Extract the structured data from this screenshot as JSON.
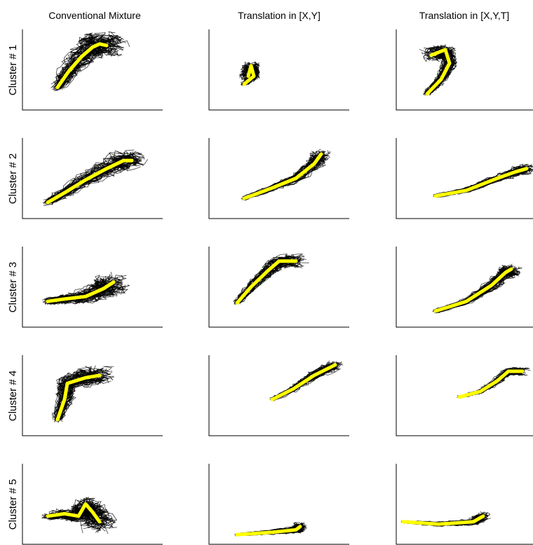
{
  "chart_data": {
    "type": "line",
    "column_titles": [
      "Conventional Mixture",
      "Translation in [X,Y]",
      "Translation in [X,Y,T]"
    ],
    "row_labels": [
      "Cluster # 1",
      "Cluster # 2",
      "Cluster # 3",
      "Cluster # 4",
      "Cluster # 5"
    ],
    "axes": "left and bottom spines only, no ticks",
    "grid": false,
    "series": [
      {
        "name": "trajectories",
        "color": "#000000"
      },
      {
        "name": "cluster mean",
        "color": "#ffff00"
      }
    ],
    "panels": [
      [
        {
          "mean": [
            [
              0.25,
              0.28
            ],
            [
              0.33,
              0.48
            ],
            [
              0.42,
              0.66
            ],
            [
              0.5,
              0.78
            ],
            [
              0.55,
              0.82
            ],
            [
              0.6,
              0.8
            ]
          ],
          "spread": 0.18
        },
        {
          "mean": [
            [
              0.18,
              0.2
            ],
            [
              0.3,
              0.32
            ],
            [
              0.45,
              0.48
            ],
            [
              0.6,
              0.62
            ],
            [
              0.72,
              0.72
            ],
            [
              0.78,
              0.72
            ]
          ],
          "spread": 0.14
        },
        {
          "mean": [
            [
              0.18,
              0.32
            ],
            [
              0.3,
              0.35
            ],
            [
              0.45,
              0.38
            ],
            [
              0.58,
              0.48
            ],
            [
              0.65,
              0.56
            ]
          ],
          "spread": 0.14
        },
        {
          "mean": [
            [
              0.25,
              0.2
            ],
            [
              0.3,
              0.45
            ],
            [
              0.32,
              0.65
            ],
            [
              0.45,
              0.72
            ],
            [
              0.55,
              0.75
            ]
          ],
          "spread": 0.14
        },
        {
          "mean": [
            [
              0.18,
              0.35
            ],
            [
              0.3,
              0.38
            ],
            [
              0.4,
              0.35
            ],
            [
              0.45,
              0.5
            ],
            [
              0.5,
              0.4
            ],
            [
              0.55,
              0.28
            ]
          ],
          "spread": 0.16
        }
      ],
      [
        {
          "mean": [
            [
              0.25,
              0.32
            ],
            [
              0.32,
              0.42
            ],
            [
              0.3,
              0.55
            ],
            [
              0.28,
              0.42
            ]
          ],
          "spread": 0.08
        },
        {
          "mean": [
            [
              0.25,
              0.25
            ],
            [
              0.45,
              0.38
            ],
            [
              0.62,
              0.5
            ],
            [
              0.75,
              0.68
            ],
            [
              0.8,
              0.8
            ]
          ],
          "spread": 0.08
        },
        {
          "mean": [
            [
              0.2,
              0.3
            ],
            [
              0.3,
              0.5
            ],
            [
              0.42,
              0.7
            ],
            [
              0.5,
              0.82
            ],
            [
              0.62,
              0.82
            ]
          ],
          "spread": 0.1
        },
        {
          "mean": [
            [
              0.45,
              0.45
            ],
            [
              0.6,
              0.58
            ],
            [
              0.75,
              0.75
            ],
            [
              0.9,
              0.88
            ]
          ],
          "spread": 0.07
        },
        {
          "mean": [
            [
              0.2,
              0.12
            ],
            [
              0.45,
              0.15
            ],
            [
              0.62,
              0.18
            ],
            [
              0.65,
              0.22
            ]
          ],
          "spread": 0.06
        }
      ],
      [
        {
          "mean": [
            [
              0.22,
              0.2
            ],
            [
              0.32,
              0.38
            ],
            [
              0.38,
              0.58
            ],
            [
              0.35,
              0.75
            ],
            [
              0.25,
              0.68
            ]
          ],
          "spread": 0.1
        },
        {
          "mean": [
            [
              0.28,
              0.28
            ],
            [
              0.5,
              0.35
            ],
            [
              0.72,
              0.5
            ],
            [
              0.85,
              0.58
            ],
            [
              0.93,
              0.62
            ]
          ],
          "spread": 0.07
        },
        {
          "mean": [
            [
              0.28,
              0.2
            ],
            [
              0.5,
              0.32
            ],
            [
              0.68,
              0.52
            ],
            [
              0.78,
              0.68
            ],
            [
              0.82,
              0.72
            ]
          ],
          "spread": 0.09
        },
        {
          "mean": [
            [
              0.45,
              0.48
            ],
            [
              0.6,
              0.55
            ],
            [
              0.72,
              0.68
            ],
            [
              0.8,
              0.8
            ],
            [
              0.9,
              0.8
            ]
          ],
          "spread": 0.06
        },
        {
          "mean": [
            [
              0.05,
              0.28
            ],
            [
              0.3,
              0.25
            ],
            [
              0.55,
              0.28
            ],
            [
              0.62,
              0.35
            ]
          ],
          "spread": 0.06
        }
      ]
    ]
  }
}
